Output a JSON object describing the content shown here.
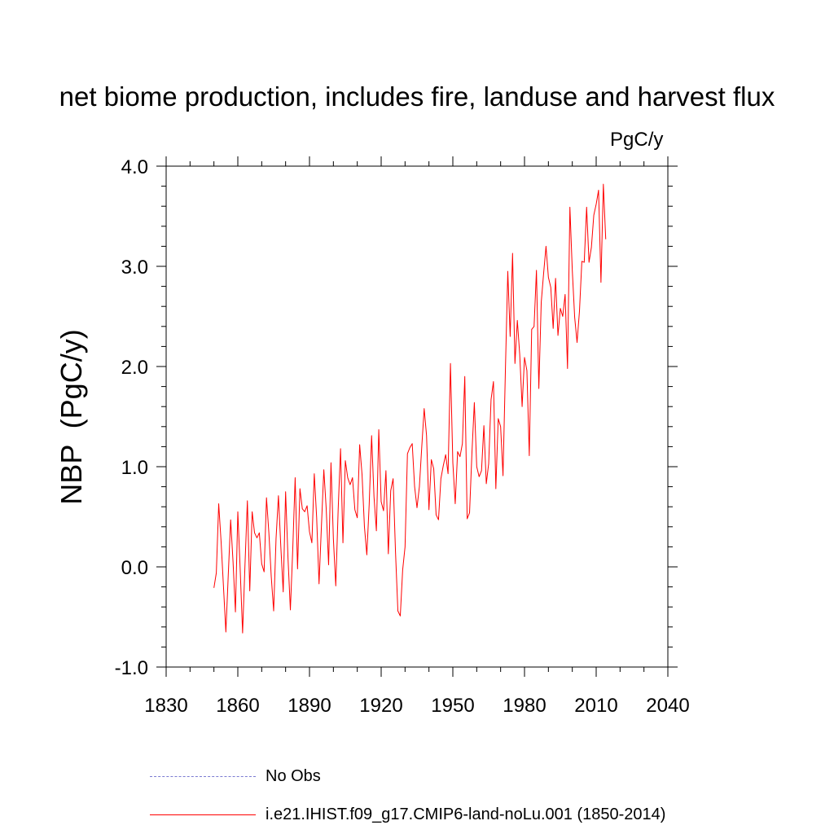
{
  "chart_data": {
    "type": "line",
    "title": "net biome production, includes fire, landuse and harvest flux",
    "units_label": "PgC/y",
    "ylabel": "NBP  (PgC/y)",
    "xlabel": "",
    "xlim": [
      1830,
      2040
    ],
    "ylim": [
      -1.0,
      4.0
    ],
    "x_ticks": [
      1830,
      1860,
      1890,
      1920,
      1950,
      1980,
      2010,
      2040
    ],
    "y_ticks": [
      "-1.0",
      "0.0",
      "1.0",
      "2.0",
      "3.0",
      "4.0"
    ],
    "grid": false,
    "series": [
      {
        "name": "i.e21.IHIST.f09_g17.CMIP6-land-noLu.001 (1850-2014)",
        "color": "#ff0000",
        "style": "solid",
        "x_start": 1850,
        "x_end": 2014,
        "values": [
          -0.21,
          -0.06,
          0.63,
          0.25,
          -0.2,
          -0.65,
          -0.08,
          0.47,
          0.05,
          -0.45,
          0.55,
          -0.03,
          -0.66,
          0.02,
          0.66,
          -0.24,
          0.55,
          0.34,
          0.29,
          0.34,
          0.03,
          -0.05,
          0.69,
          0.34,
          -0.1,
          -0.44,
          0.28,
          0.71,
          0.2,
          -0.25,
          0.75,
          0.09,
          -0.43,
          0.18,
          0.89,
          -0.02,
          0.78,
          0.58,
          0.55,
          0.61,
          0.35,
          0.24,
          0.93,
          0.49,
          -0.17,
          0.41,
          0.97,
          0.58,
          0.02,
          1.04,
          0.28,
          -0.19,
          0.57,
          1.18,
          0.24,
          1.06,
          0.89,
          0.82,
          0.89,
          0.57,
          0.49,
          1.22,
          0.92,
          0.4,
          0.12,
          0.63,
          1.31,
          0.7,
          0.36,
          1.37,
          0.65,
          0.56,
          0.96,
          0.13,
          0.76,
          0.88,
          0.15,
          -0.44,
          -0.49,
          -0.03,
          0.2,
          1.13,
          1.19,
          1.23,
          0.8,
          0.59,
          0.8,
          1.2,
          1.58,
          1.31,
          0.57,
          1.07,
          0.98,
          0.52,
          0.47,
          0.88,
          1.01,
          1.12,
          0.93,
          2.03,
          1.04,
          0.63,
          1.15,
          1.1,
          1.23,
          1.9,
          0.48,
          0.54,
          1.14,
          1.64,
          1.0,
          0.9,
          0.96,
          1.41,
          0.83,
          1.03,
          1.67,
          1.85,
          0.78,
          1.48,
          1.4,
          0.91,
          1.96,
          2.95,
          2.3,
          3.13,
          2.03,
          2.46,
          2.12,
          1.6,
          2.09,
          1.96,
          1.11,
          2.37,
          2.4,
          2.96,
          1.78,
          2.64,
          2.93,
          3.2,
          2.89,
          2.79,
          2.38,
          2.88,
          2.31,
          2.58,
          2.5,
          2.72,
          1.98,
          3.59,
          2.96,
          2.49,
          2.24,
          2.55,
          3.05,
          3.04,
          3.59,
          3.04,
          3.19,
          3.51,
          3.62,
          3.76,
          2.84,
          3.82,
          3.27
        ]
      }
    ],
    "legend": [
      {
        "label": "No Obs",
        "color": "#7b7bd1",
        "style": "dashed"
      },
      {
        "label": "i.e21.IHIST.f09_g17.CMIP6-land-noLu.001 (1850-2014)",
        "color": "#ff0000",
        "style": "solid"
      }
    ],
    "legend_position": "bottom"
  }
}
